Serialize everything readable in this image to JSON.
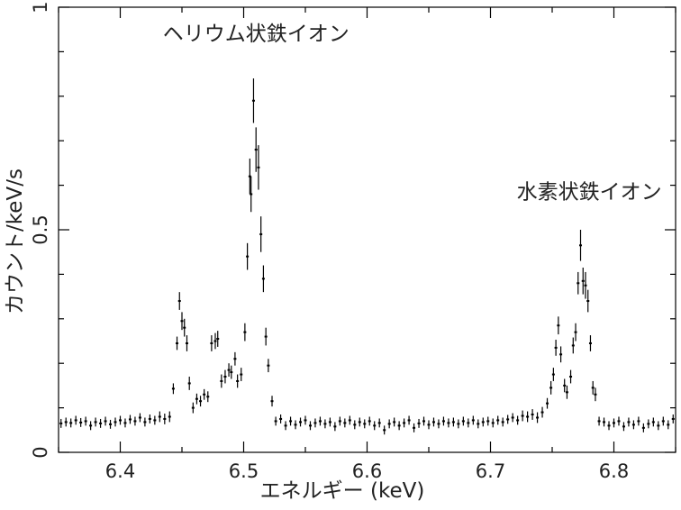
{
  "chart_data": {
    "type": "scatter",
    "xlabel": "エネルギー (keV)",
    "ylabel": "カウント/keV/s",
    "xlim": [
      6.35,
      6.85
    ],
    "ylim": [
      0,
      1
    ],
    "xticks": [
      6.4,
      6.5,
      6.6,
      6.7,
      6.8
    ],
    "xtick_labels": [
      "6.4",
      "6.5",
      "6.6",
      "6.7",
      "6.8"
    ],
    "yticks": [
      0,
      0.5,
      1
    ],
    "ytick_labels": [
      "0",
      "0.5",
      "1"
    ],
    "grid": false,
    "annotations": [
      {
        "text": "ヘリウム状鉄イオン",
        "x": 6.51,
        "y": 0.925
      },
      {
        "text": "水素状鉄イオン",
        "x": 6.78,
        "y": 0.57
      }
    ],
    "points": [
      [
        6.352,
        0.065,
        0.01
      ],
      [
        6.356,
        0.068,
        0.01
      ],
      [
        6.36,
        0.066,
        0.01
      ],
      [
        6.364,
        0.072,
        0.01
      ],
      [
        6.368,
        0.067,
        0.01
      ],
      [
        6.372,
        0.07,
        0.01
      ],
      [
        6.376,
        0.06,
        0.01
      ],
      [
        6.38,
        0.068,
        0.01
      ],
      [
        6.384,
        0.065,
        0.01
      ],
      [
        6.388,
        0.07,
        0.01
      ],
      [
        6.392,
        0.063,
        0.01
      ],
      [
        6.396,
        0.068,
        0.01
      ],
      [
        6.4,
        0.072,
        0.01
      ],
      [
        6.404,
        0.066,
        0.01
      ],
      [
        6.408,
        0.074,
        0.01
      ],
      [
        6.412,
        0.07,
        0.01
      ],
      [
        6.416,
        0.078,
        0.01
      ],
      [
        6.42,
        0.068,
        0.01
      ],
      [
        6.424,
        0.075,
        0.01
      ],
      [
        6.428,
        0.072,
        0.01
      ],
      [
        6.432,
        0.08,
        0.012
      ],
      [
        6.436,
        0.075,
        0.012
      ],
      [
        6.44,
        0.08,
        0.012
      ],
      [
        6.443,
        0.143,
        0.012
      ],
      [
        6.446,
        0.245,
        0.015
      ],
      [
        6.448,
        0.34,
        0.02
      ],
      [
        6.45,
        0.295,
        0.02
      ],
      [
        6.452,
        0.28,
        0.02
      ],
      [
        6.454,
        0.245,
        0.018
      ],
      [
        6.456,
        0.155,
        0.015
      ],
      [
        6.459,
        0.1,
        0.012
      ],
      [
        6.462,
        0.12,
        0.012
      ],
      [
        6.465,
        0.115,
        0.012
      ],
      [
        6.468,
        0.13,
        0.012
      ],
      [
        6.471,
        0.125,
        0.012
      ],
      [
        6.474,
        0.245,
        0.018
      ],
      [
        6.477,
        0.25,
        0.018
      ],
      [
        6.479,
        0.255,
        0.018
      ],
      [
        6.482,
        0.16,
        0.015
      ],
      [
        6.485,
        0.17,
        0.015
      ],
      [
        6.488,
        0.185,
        0.015
      ],
      [
        6.49,
        0.18,
        0.015
      ],
      [
        6.493,
        0.21,
        0.015
      ],
      [
        6.495,
        0.16,
        0.015
      ],
      [
        6.498,
        0.175,
        0.015
      ],
      [
        6.501,
        0.27,
        0.02
      ],
      [
        6.503,
        0.44,
        0.03
      ],
      [
        6.505,
        0.62,
        0.04
      ],
      [
        6.506,
        0.58,
        0.04
      ],
      [
        6.508,
        0.79,
        0.05
      ],
      [
        6.51,
        0.68,
        0.05
      ],
      [
        6.512,
        0.64,
        0.05
      ],
      [
        6.514,
        0.49,
        0.04
      ],
      [
        6.516,
        0.39,
        0.03
      ],
      [
        6.518,
        0.26,
        0.02
      ],
      [
        6.52,
        0.195,
        0.015
      ],
      [
        6.523,
        0.115,
        0.012
      ],
      [
        6.526,
        0.07,
        0.01
      ],
      [
        6.53,
        0.075,
        0.01
      ],
      [
        6.534,
        0.06,
        0.01
      ],
      [
        6.538,
        0.07,
        0.01
      ],
      [
        6.542,
        0.062,
        0.01
      ],
      [
        6.546,
        0.068,
        0.01
      ],
      [
        6.55,
        0.072,
        0.01
      ],
      [
        6.554,
        0.06,
        0.01
      ],
      [
        6.558,
        0.066,
        0.01
      ],
      [
        6.562,
        0.07,
        0.01
      ],
      [
        6.566,
        0.064,
        0.01
      ],
      [
        6.57,
        0.068,
        0.01
      ],
      [
        6.574,
        0.058,
        0.01
      ],
      [
        6.578,
        0.07,
        0.01
      ],
      [
        6.582,
        0.066,
        0.01
      ],
      [
        6.586,
        0.072,
        0.01
      ],
      [
        6.59,
        0.062,
        0.01
      ],
      [
        6.594,
        0.068,
        0.01
      ],
      [
        6.598,
        0.064,
        0.01
      ],
      [
        6.602,
        0.07,
        0.01
      ],
      [
        6.606,
        0.06,
        0.01
      ],
      [
        6.61,
        0.066,
        0.01
      ],
      [
        6.614,
        0.05,
        0.01
      ],
      [
        6.618,
        0.064,
        0.01
      ],
      [
        6.622,
        0.068,
        0.01
      ],
      [
        6.626,
        0.06,
        0.01
      ],
      [
        6.63,
        0.066,
        0.01
      ],
      [
        6.634,
        0.072,
        0.01
      ],
      [
        6.638,
        0.055,
        0.01
      ],
      [
        6.642,
        0.065,
        0.01
      ],
      [
        6.646,
        0.07,
        0.01
      ],
      [
        6.65,
        0.062,
        0.01
      ],
      [
        6.654,
        0.068,
        0.01
      ],
      [
        6.658,
        0.064,
        0.01
      ],
      [
        6.662,
        0.07,
        0.01
      ],
      [
        6.666,
        0.066,
        0.01
      ],
      [
        6.67,
        0.068,
        0.01
      ],
      [
        6.674,
        0.064,
        0.01
      ],
      [
        6.678,
        0.07,
        0.01
      ],
      [
        6.682,
        0.066,
        0.01
      ],
      [
        6.686,
        0.072,
        0.01
      ],
      [
        6.69,
        0.064,
        0.01
      ],
      [
        6.694,
        0.068,
        0.01
      ],
      [
        6.698,
        0.07,
        0.01
      ],
      [
        6.702,
        0.066,
        0.01
      ],
      [
        6.706,
        0.072,
        0.01
      ],
      [
        6.71,
        0.068,
        0.01
      ],
      [
        6.714,
        0.074,
        0.01
      ],
      [
        6.718,
        0.078,
        0.01
      ],
      [
        6.722,
        0.072,
        0.01
      ],
      [
        6.726,
        0.082,
        0.012
      ],
      [
        6.73,
        0.08,
        0.012
      ],
      [
        6.734,
        0.085,
        0.012
      ],
      [
        6.738,
        0.078,
        0.012
      ],
      [
        6.742,
        0.09,
        0.012
      ],
      [
        6.746,
        0.11,
        0.012
      ],
      [
        6.749,
        0.145,
        0.015
      ],
      [
        6.751,
        0.175,
        0.015
      ],
      [
        6.753,
        0.235,
        0.018
      ],
      [
        6.755,
        0.285,
        0.02
      ],
      [
        6.757,
        0.22,
        0.018
      ],
      [
        6.76,
        0.15,
        0.015
      ],
      [
        6.762,
        0.135,
        0.015
      ],
      [
        6.765,
        0.17,
        0.015
      ],
      [
        6.767,
        0.24,
        0.018
      ],
      [
        6.769,
        0.27,
        0.02
      ],
      [
        6.771,
        0.38,
        0.025
      ],
      [
        6.773,
        0.465,
        0.035
      ],
      [
        6.775,
        0.385,
        0.03
      ],
      [
        6.777,
        0.375,
        0.03
      ],
      [
        6.779,
        0.34,
        0.025
      ],
      [
        6.781,
        0.245,
        0.018
      ],
      [
        6.783,
        0.145,
        0.015
      ],
      [
        6.785,
        0.13,
        0.015
      ],
      [
        6.788,
        0.07,
        0.01
      ],
      [
        6.792,
        0.068,
        0.01
      ],
      [
        6.796,
        0.06,
        0.01
      ],
      [
        6.8,
        0.066,
        0.01
      ],
      [
        6.804,
        0.07,
        0.01
      ],
      [
        6.808,
        0.058,
        0.01
      ],
      [
        6.812,
        0.068,
        0.01
      ],
      [
        6.816,
        0.062,
        0.01
      ],
      [
        6.82,
        0.07,
        0.01
      ],
      [
        6.824,
        0.055,
        0.01
      ],
      [
        6.828,
        0.064,
        0.01
      ],
      [
        6.832,
        0.068,
        0.01
      ],
      [
        6.836,
        0.06,
        0.01
      ],
      [
        6.84,
        0.07,
        0.01
      ],
      [
        6.844,
        0.062,
        0.01
      ],
      [
        6.848,
        0.075,
        0.01
      ]
    ]
  }
}
